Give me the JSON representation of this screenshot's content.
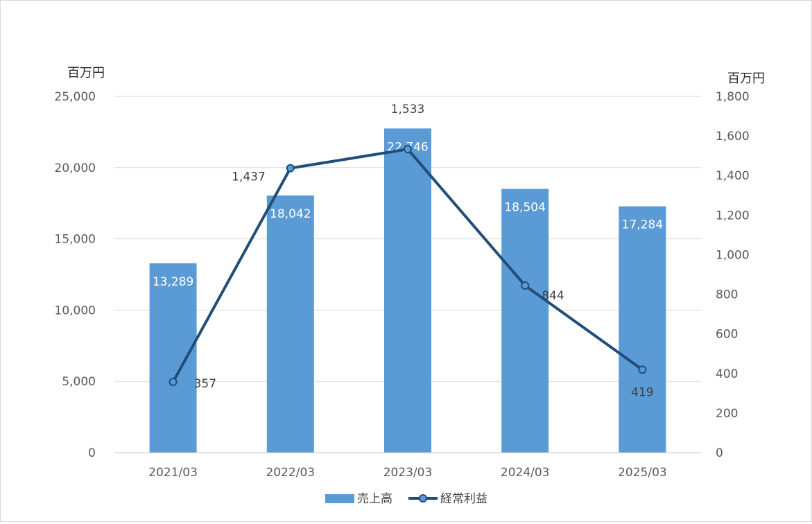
{
  "chart_data": {
    "type": "bar+line",
    "categories": [
      "2021/03",
      "2022/03",
      "2023/03",
      "2024/03",
      "2025/03"
    ],
    "series": [
      {
        "name": "売上高",
        "type": "bar",
        "axis": "left",
        "values": [
          13289,
          18042,
          22746,
          18504,
          17284
        ],
        "labels": [
          "13,289",
          "18,042",
          "22,746",
          "18,504",
          "17,284"
        ],
        "color": "#5b9bd5"
      },
      {
        "name": "経常利益",
        "type": "line",
        "axis": "right",
        "values": [
          357,
          1437,
          1533,
          844,
          419
        ],
        "labels": [
          "357",
          "1,437",
          "1,533",
          "844",
          "419"
        ],
        "color": "#1f4e79"
      }
    ],
    "y_left": {
      "unit": "百万円",
      "min": 0,
      "max": 25000,
      "ticks": [
        "0",
        "5,000",
        "10,000",
        "15,000",
        "20,000",
        "25,000"
      ]
    },
    "y_right": {
      "unit": "百万円",
      "min": 0,
      "max": 1800,
      "ticks": [
        "0",
        "200",
        "400",
        "600",
        "800",
        "1,000",
        "1,200",
        "1,400",
        "1,600",
        "1,800"
      ]
    },
    "grid": true,
    "legend": "bottom-center"
  }
}
